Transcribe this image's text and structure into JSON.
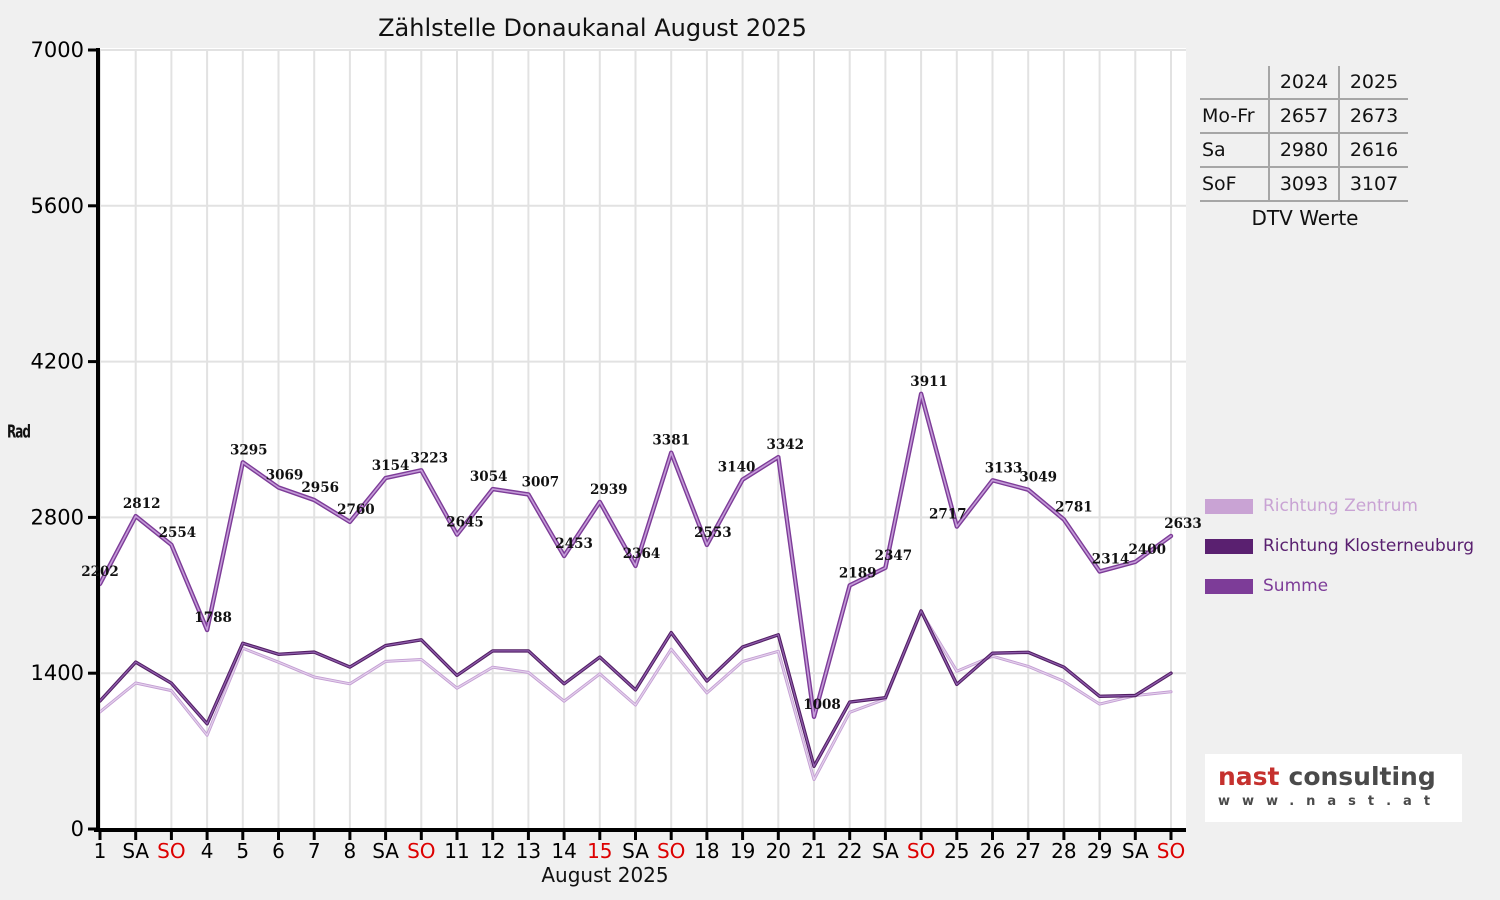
{
  "title": "Zählstelle Donaukanal August 2025",
  "axes": {
    "x_title": "August 2025",
    "y_label": "Rad"
  },
  "colors": {
    "background": "#f0f0f0",
    "plot_bg": "#ffffff",
    "grid": "#e2e2e2",
    "axis": "#000000",
    "holiday_red": "#dd0000",
    "zentrum": "#c49dd3",
    "zentrum_core": "#e3d2ec",
    "klosterneuburg": "#521e63",
    "klosterneuburg_core": "#8d5cab",
    "summe": "#7d3c98",
    "summe_core": "#c49bd8"
  },
  "chart_data": {
    "type": "line",
    "title": "Zählstelle Donaukanal August 2025",
    "xlabel": "August 2025",
    "ylabel": "Rad",
    "ylim": [
      0,
      7000
    ],
    "y_ticks": [
      0,
      1400,
      2800,
      4200,
      5600,
      7000
    ],
    "x": [
      1,
      2,
      3,
      4,
      5,
      6,
      7,
      8,
      9,
      10,
      11,
      12,
      13,
      14,
      15,
      16,
      17,
      18,
      19,
      20,
      21,
      22,
      23,
      24,
      25,
      26,
      27,
      28,
      29,
      30,
      31
    ],
    "x_tick_labels": [
      "1",
      "SA",
      "SO",
      "4",
      "5",
      "6",
      "7",
      "8",
      "SA",
      "SO",
      "11",
      "12",
      "13",
      "14",
      "15",
      "SA",
      "SO",
      "18",
      "19",
      "20",
      "21",
      "22",
      "SA",
      "SO",
      "25",
      "26",
      "27",
      "28",
      "29",
      "SA",
      "SO"
    ],
    "x_tick_red_indices": [
      2,
      9,
      14,
      16,
      23,
      30
    ],
    "label_dx": [
      0,
      6,
      6,
      6,
      6,
      6,
      6,
      6,
      5,
      8,
      8,
      -4,
      12,
      10,
      9,
      6,
      0,
      6,
      -6,
      7,
      8,
      8,
      8,
      8,
      -9,
      11,
      10,
      10,
      11,
      12,
      12
    ],
    "series": [
      {
        "id": "zentrum",
        "name": "Richtung Zentrum",
        "color": "#c49dd3",
        "core_color": "#e3d2ec",
        "width": 3,
        "core_width": 1.2,
        "values": [
          1052,
          1312,
          1244,
          843,
          1625,
          1499,
          1366,
          1305,
          1506,
          1523,
          1265,
          1454,
          1407,
          1148,
          1394,
          1114,
          1616,
          1223,
          1505,
          1597,
          445,
          1049,
          1167,
          1951,
          1418,
          1553,
          1461,
          1327,
          1122,
          1200,
          1233
        ]
      },
      {
        "id": "klosterneuburg",
        "name": "Richtung Klosterneuburg",
        "color": "#521e63",
        "core_color": "#8d5cab",
        "width": 3.4,
        "core_width": 1.3,
        "values": [
          1150,
          1500,
          1310,
          945,
          1670,
          1570,
          1590,
          1455,
          1648,
          1700,
          1380,
          1600,
          1600,
          1305,
          1545,
          1250,
          1765,
          1330,
          1635,
          1745,
          563,
          1140,
          1180,
          1960,
          1299,
          1580,
          1588,
          1454,
          1192,
          1200,
          1400
        ]
      },
      {
        "id": "summe",
        "name": "Summe",
        "color": "#7d3c98",
        "core_color": "#c49bd8",
        "width": 4.4,
        "core_width": 1.6,
        "labeled": true,
        "values": [
          2202,
          2812,
          2554,
          1788,
          3295,
          3069,
          2956,
          2760,
          3154,
          3223,
          2645,
          3054,
          3007,
          2453,
          2939,
          2364,
          3381,
          2553,
          3140,
          3342,
          1008,
          2189,
          2347,
          3911,
          2717,
          3133,
          3049,
          2781,
          2314,
          2400,
          2633
        ]
      }
    ],
    "legend_position": "right"
  },
  "table": {
    "col_headers": [
      "2024",
      "2025"
    ],
    "rows": [
      {
        "label": "Mo-Fr",
        "values": [
          "2657",
          "2673"
        ]
      },
      {
        "label": "Sa",
        "values": [
          "2980",
          "2616"
        ]
      },
      {
        "label": "SoF",
        "values": [
          "3093",
          "3107"
        ]
      }
    ],
    "caption": "DTV Werte"
  },
  "legend": {
    "items": [
      {
        "label": "Richtung Zentrum",
        "color": "#c9a3d4"
      },
      {
        "label": "Richtung Klosterneuburg",
        "color": "#5a2070"
      },
      {
        "label": "Summe",
        "color": "#7d3c98"
      }
    ]
  },
  "logo": {
    "brand": "nast",
    "brand_suffix": "consulting",
    "website": "www.nast.at"
  }
}
